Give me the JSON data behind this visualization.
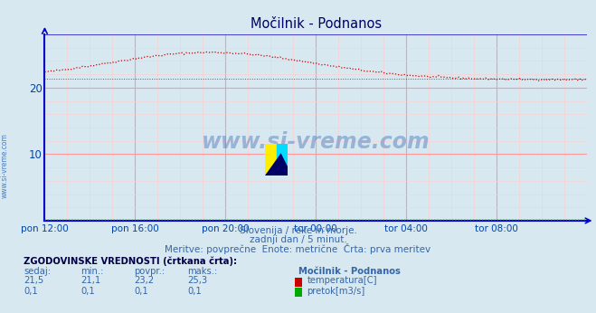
{
  "title": "Močilnik - Podnanos",
  "background_color": "#d8e8f0",
  "plot_bg_color": "#d8e8f0",
  "grid_color_major": "#ff9999",
  "grid_color_minor": "#ffcccc",
  "axis_color": "#0000cc",
  "title_color": "#000066",
  "label_color": "#0044aa",
  "text_color": "#3366aa",
  "xlim_min": 0,
  "xlim_max": 288,
  "ylim_min": 0,
  "ylim_max": 28,
  "yticks": [
    10,
    20
  ],
  "xtick_labels": [
    "pon 12:00",
    "pon 16:00",
    "pon 20:00",
    "tor 00:00",
    "tor 04:00",
    "tor 08:00"
  ],
  "xtick_positions": [
    0,
    48,
    96,
    144,
    192,
    240
  ],
  "temp_color": "#cc0000",
  "flow_color": "#00aa00",
  "watermark_text": "www.si-vreme.com",
  "watermark_color": "#4477bb",
  "subtitle1": "Slovenija / reke in morje.",
  "subtitle2": "zadnji dan / 5 minut.",
  "subtitle3": "Meritve: povprečne  Enote: metrične  Črta: prva meritev",
  "legend_title": "ZGODOVINSKE VREDNOSTI (črtkana črta):",
  "leg_col1": "sedaj:",
  "leg_col2": "min.:",
  "leg_col3": "povpr.:",
  "leg_col4": "maks.:",
  "leg_station": "Močilnik - Podnanos",
  "temp_sedaj": "21,5",
  "temp_min": "21,1",
  "temp_povpr": "23,2",
  "temp_maks": "25,3",
  "temp_label": "temperatura[C]",
  "flow_sedaj": "0,1",
  "flow_min": "0,1",
  "flow_povpr": "0,1",
  "flow_maks": "0,1",
  "flow_label": "pretok[m3/s]"
}
